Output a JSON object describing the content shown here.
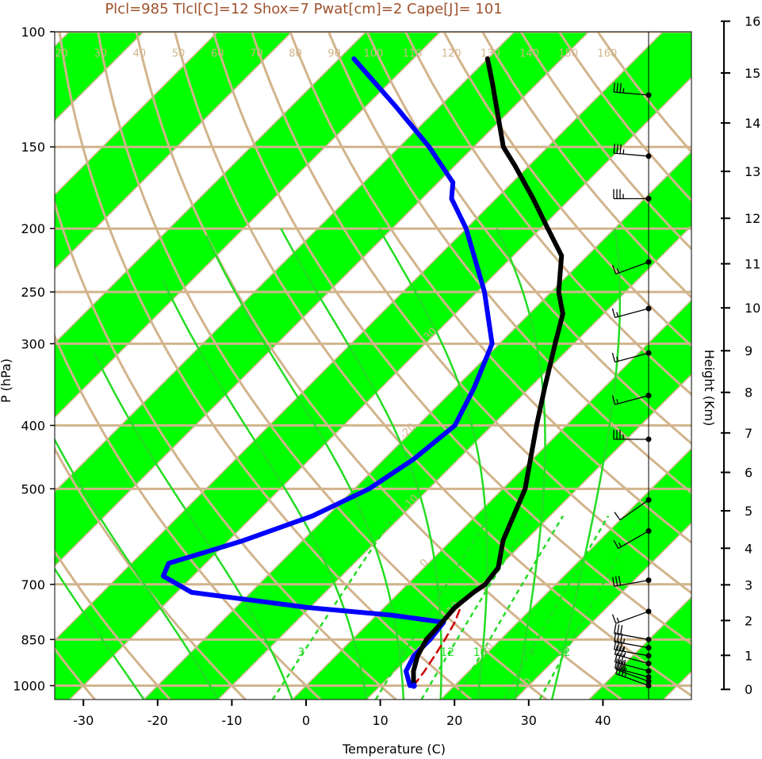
{
  "chart_data": {
    "type": "line",
    "title": "Plcl=985 Tlcl[C]=12 Shox=7 Pwat[cm]=2 Cape[J]= 101",
    "xlabel": "Temperature (C)",
    "ylabel": "P (hPa)",
    "y2label": "Height (Km)",
    "xlim": [
      -34,
      52
    ],
    "plim": [
      1050,
      100
    ],
    "x_ticks": [
      "-30",
      "-20",
      "-10",
      "0",
      "10",
      "20",
      "30",
      "40"
    ],
    "p_ticks": [
      "100",
      "150",
      "200",
      "250",
      "300",
      "400",
      "500",
      "700",
      "850",
      "1000"
    ],
    "height_ticks": [
      "0",
      "1",
      "2",
      "3",
      "4",
      "5",
      "6",
      "7",
      "8",
      "9",
      "10",
      "11",
      "12",
      "13",
      "14",
      "15",
      "16"
    ],
    "isotherm_labels": [
      "-30",
      "-20",
      "-10",
      "0",
      "10",
      "20",
      "30"
    ],
    "dry_adiabat_labels": [
      "-30",
      "-20",
      "-10",
      "0",
      "10",
      "20",
      "30",
      "40",
      "50",
      "60",
      "70",
      "80",
      "90",
      "100",
      "110",
      "120",
      "130",
      "140",
      "150",
      "160"
    ],
    "mixing_ratio_labels": [
      "3",
      "8",
      "12",
      "16",
      "24",
      "32"
    ],
    "colors": {
      "temperature": "#000000",
      "dewpoint": "#0000ff",
      "parcel": "#cc0000",
      "isotherm_band": "#00ff00",
      "grid": "#d2b48c",
      "mixing_ratio": "#22dd22",
      "title": "#a0522d"
    },
    "series": [
      {
        "key": "temperature",
        "p": [
          1000,
          950,
          900,
          850,
          800,
          760,
          720,
          700,
          660,
          600,
          500,
          400,
          350,
          300,
          270,
          250,
          220,
          200,
          180,
          160,
          150,
          120,
          110
        ],
        "t": [
          14.5,
          12.5,
          11,
          10,
          9.8,
          9.5,
          10,
          10.5,
          10,
          7,
          3,
          -4,
          -8,
          -12.5,
          -15.5,
          -19,
          -23.5,
          -29,
          -35,
          -42,
          -46,
          -56,
          -60
        ]
      },
      {
        "key": "dewpoint",
        "p": [
          1000,
          950,
          900,
          850,
          800,
          780,
          760,
          720,
          680,
          650,
          600,
          550,
          500,
          450,
          400,
          350,
          300,
          250,
          200,
          180,
          170,
          150,
          130,
          110
        ],
        "t": [
          14,
          11.5,
          10.5,
          10.5,
          10,
          2,
          -10,
          -28,
          -34,
          -35,
          -28,
          -22,
          -18,
          -16,
          -15,
          -17.5,
          -21,
          -29,
          -40,
          -46,
          -48,
          -56,
          -66,
          -78
        ]
      },
      {
        "key": "parcel",
        "p": [
          1000,
          950,
          900,
          850,
          800,
          760
        ],
        "t": [
          14.5,
          14.0,
          13.3,
          12.5,
          11.5,
          10.3
        ]
      }
    ],
    "wind_barbs": [
      {
        "p": 1000,
        "dir": 290,
        "spd": 35
      },
      {
        "p": 985,
        "dir": 290,
        "spd": 35
      },
      {
        "p": 970,
        "dir": 285,
        "spd": 35
      },
      {
        "p": 950,
        "dir": 285,
        "spd": 35
      },
      {
        "p": 925,
        "dir": 285,
        "spd": 35
      },
      {
        "p": 900,
        "dir": 280,
        "spd": 35
      },
      {
        "p": 875,
        "dir": 280,
        "spd": 35
      },
      {
        "p": 850,
        "dir": 280,
        "spd": 30
      },
      {
        "p": 770,
        "dir": 250,
        "spd": 15
      },
      {
        "p": 690,
        "dir": 260,
        "spd": 30
      },
      {
        "p": 580,
        "dir": 240,
        "spd": 15
      },
      {
        "p": 520,
        "dir": 235,
        "spd": 10
      },
      {
        "p": 420,
        "dir": 270,
        "spd": 35
      },
      {
        "p": 360,
        "dir": 255,
        "spd": 15
      },
      {
        "p": 310,
        "dir": 255,
        "spd": 15
      },
      {
        "p": 265,
        "dir": 255,
        "spd": 15
      },
      {
        "p": 225,
        "dir": 250,
        "spd": 15
      },
      {
        "p": 180,
        "dir": 270,
        "spd": 35
      },
      {
        "p": 155,
        "dir": 275,
        "spd": 35
      },
      {
        "p": 125,
        "dir": 275,
        "spd": 35
      }
    ]
  }
}
